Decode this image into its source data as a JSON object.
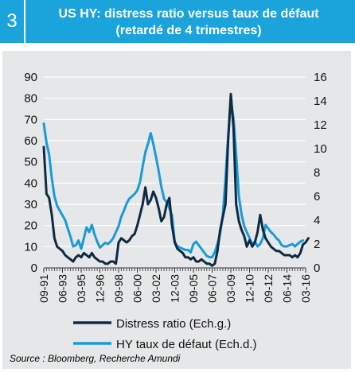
{
  "figure": {
    "number": "3",
    "title_line1": "US HY: distress ratio versus taux de défaut",
    "title_line2": "(retardé de 4 trimestres)",
    "source": "Source : Bloomberg, Recherche Amundi"
  },
  "colors": {
    "header": "#1ba3dc",
    "panel": "#e6e7e8",
    "distress": "#0d2b45",
    "default_rate": "#1a9ad9"
  },
  "chart_data": {
    "type": "line",
    "x_ticks": [
      "09-91",
      "06-93",
      "03-95",
      "12-96",
      "09-98",
      "06-00",
      "03-02",
      "12-03",
      "09-05",
      "06-07",
      "03-09",
      "12-10",
      "09-12",
      "06-14",
      "03-16"
    ],
    "y_left": {
      "label": "",
      "ylim": [
        0,
        90
      ],
      "ticks": [
        0,
        10,
        20,
        30,
        40,
        50,
        60,
        70,
        80,
        90
      ]
    },
    "y_right": {
      "label": "",
      "ylim": [
        0,
        16
      ],
      "ticks": [
        0,
        2,
        4,
        6,
        8,
        10,
        12,
        14,
        16
      ]
    },
    "legend_position": "bottom",
    "series": [
      {
        "name": "Distress ratio (Ech.g.)",
        "axis": "left",
        "color": "#0d2b45",
        "points": [
          [
            "1991-09",
            57
          ],
          [
            "1991-12",
            35
          ],
          [
            "1992-03",
            33
          ],
          [
            "1992-06",
            25
          ],
          [
            "1992-09",
            14
          ],
          [
            "1992-12",
            10
          ],
          [
            "1993-03",
            9
          ],
          [
            "1993-06",
            8
          ],
          [
            "1993-09",
            6
          ],
          [
            "1993-12",
            5
          ],
          [
            "1994-03",
            4
          ],
          [
            "1994-06",
            3
          ],
          [
            "1994-09",
            5
          ],
          [
            "1994-12",
            6
          ],
          [
            "1995-03",
            5
          ],
          [
            "1995-06",
            7
          ],
          [
            "1995-09",
            6
          ],
          [
            "1995-12",
            5
          ],
          [
            "1996-03",
            7
          ],
          [
            "1996-06",
            5
          ],
          [
            "1996-09",
            4
          ],
          [
            "1996-12",
            3
          ],
          [
            "1997-03",
            3
          ],
          [
            "1997-06",
            2
          ],
          [
            "1997-09",
            2
          ],
          [
            "1997-12",
            3
          ],
          [
            "1998-03",
            3
          ],
          [
            "1998-06",
            2
          ],
          [
            "1998-09",
            12
          ],
          [
            "1998-12",
            14
          ],
          [
            "1999-03",
            13
          ],
          [
            "1999-06",
            12
          ],
          [
            "1999-09",
            13
          ],
          [
            "1999-12",
            15
          ],
          [
            "2000-03",
            16
          ],
          [
            "2000-06",
            20
          ],
          [
            "2000-09",
            25
          ],
          [
            "2000-12",
            30
          ],
          [
            "2001-03",
            38
          ],
          [
            "2001-06",
            30
          ],
          [
            "2001-09",
            32
          ],
          [
            "2001-12",
            36
          ],
          [
            "2002-03",
            33
          ],
          [
            "2002-06",
            28
          ],
          [
            "2002-09",
            22
          ],
          [
            "2002-12",
            24
          ],
          [
            "2003-03",
            30
          ],
          [
            "2003-06",
            33
          ],
          [
            "2003-09",
            20
          ],
          [
            "2003-12",
            12
          ],
          [
            "2004-03",
            9
          ],
          [
            "2004-06",
            8
          ],
          [
            "2004-09",
            7
          ],
          [
            "2004-12",
            5
          ],
          [
            "2005-03",
            5
          ],
          [
            "2005-06",
            4
          ],
          [
            "2005-09",
            5
          ],
          [
            "2005-12",
            3
          ],
          [
            "2006-03",
            3
          ],
          [
            "2006-06",
            4
          ],
          [
            "2006-09",
            3
          ],
          [
            "2006-12",
            2
          ],
          [
            "2007-03",
            2
          ],
          [
            "2007-06",
            1
          ],
          [
            "2007-09",
            2
          ],
          [
            "2007-12",
            8
          ],
          [
            "2008-03",
            18
          ],
          [
            "2008-06",
            24
          ],
          [
            "2008-09",
            30
          ],
          [
            "2008-12",
            60
          ],
          [
            "2009-03",
            82
          ],
          [
            "2009-06",
            66
          ],
          [
            "2009-09",
            30
          ],
          [
            "2009-12",
            22
          ],
          [
            "2010-03",
            18
          ],
          [
            "2010-06",
            15
          ],
          [
            "2010-09",
            10
          ],
          [
            "2010-12",
            13
          ],
          [
            "2011-03",
            10
          ],
          [
            "2011-06",
            12
          ],
          [
            "2011-09",
            17
          ],
          [
            "2011-12",
            25
          ],
          [
            "2012-03",
            18
          ],
          [
            "2012-06",
            14
          ],
          [
            "2012-09",
            12
          ],
          [
            "2012-12",
            10
          ],
          [
            "2013-03",
            9
          ],
          [
            "2013-06",
            8
          ],
          [
            "2013-09",
            8
          ],
          [
            "2013-12",
            7
          ],
          [
            "2014-03",
            6
          ],
          [
            "2014-06",
            6
          ],
          [
            "2014-09",
            6
          ],
          [
            "2014-12",
            5
          ],
          [
            "2015-03",
            6
          ],
          [
            "2015-06",
            5
          ],
          [
            "2015-09",
            7
          ],
          [
            "2015-12",
            11
          ],
          [
            "2016-03",
            12
          ],
          [
            "2016-06",
            14
          ]
        ]
      },
      {
        "name": "HY taux de défaut (Ech.d.)",
        "axis": "right",
        "color": "#1a9ad9",
        "points": [
          [
            "1991-09",
            12.1
          ],
          [
            "1991-12",
            10.5
          ],
          [
            "1992-03",
            9.5
          ],
          [
            "1992-06",
            7.5
          ],
          [
            "1992-09",
            6
          ],
          [
            "1992-12",
            5.2
          ],
          [
            "1993-03",
            4.8
          ],
          [
            "1993-06",
            4.4
          ],
          [
            "1993-09",
            4
          ],
          [
            "1993-12",
            3.3
          ],
          [
            "1994-03",
            2.6
          ],
          [
            "1994-06",
            1.8
          ],
          [
            "1994-09",
            1.9
          ],
          [
            "1994-12",
            2.3
          ],
          [
            "1995-03",
            1.6
          ],
          [
            "1995-06",
            2.5
          ],
          [
            "1995-09",
            3.4
          ],
          [
            "1995-12",
            3.0
          ],
          [
            "1996-03",
            3.6
          ],
          [
            "1996-06",
            2.8
          ],
          [
            "1996-09",
            2.2
          ],
          [
            "1996-12",
            1.7
          ],
          [
            "1997-03",
            1.9
          ],
          [
            "1997-06",
            2.1
          ],
          [
            "1997-09",
            2.0
          ],
          [
            "1997-12",
            2.2
          ],
          [
            "1998-03",
            2.5
          ],
          [
            "1998-06",
            3.0
          ],
          [
            "1998-09",
            3.5
          ],
          [
            "1998-12",
            4.3
          ],
          [
            "1999-03",
            4.8
          ],
          [
            "1999-06",
            5.4
          ],
          [
            "1999-09",
            5.8
          ],
          [
            "1999-12",
            6.0
          ],
          [
            "2000-03",
            6.2
          ],
          [
            "2000-06",
            6.5
          ],
          [
            "2000-09",
            7.2
          ],
          [
            "2000-12",
            8.5
          ],
          [
            "2001-03",
            9.7
          ],
          [
            "2001-06",
            10.4
          ],
          [
            "2001-09",
            11.3
          ],
          [
            "2001-12",
            10.4
          ],
          [
            "2002-03",
            9.3
          ],
          [
            "2002-06",
            8.1
          ],
          [
            "2002-09",
            6.8
          ],
          [
            "2002-12",
            5.8
          ],
          [
            "2003-03",
            5.5
          ],
          [
            "2003-06",
            5.0
          ],
          [
            "2003-09",
            4.4
          ],
          [
            "2003-12",
            2.2
          ],
          [
            "2004-03",
            1.8
          ],
          [
            "2004-06",
            1.7
          ],
          [
            "2004-09",
            1.6
          ],
          [
            "2004-12",
            1.5
          ],
          [
            "2005-03",
            1.5
          ],
          [
            "2005-06",
            1.3
          ],
          [
            "2005-09",
            2.0
          ],
          [
            "2005-12",
            2.2
          ],
          [
            "2006-03",
            1.9
          ],
          [
            "2006-06",
            1.6
          ],
          [
            "2006-09",
            1.3
          ],
          [
            "2006-12",
            1.0
          ],
          [
            "2007-03",
            0.9
          ],
          [
            "2007-06",
            0.9
          ],
          [
            "2007-09",
            1.3
          ],
          [
            "2007-12",
            2.0
          ],
          [
            "2008-03",
            2.9
          ],
          [
            "2008-06",
            4.4
          ],
          [
            "2008-09",
            7.5
          ],
          [
            "2008-12",
            11.0
          ],
          [
            "2009-03",
            14.0
          ],
          [
            "2009-06",
            12.5
          ],
          [
            "2009-09",
            9.5
          ],
          [
            "2009-12",
            6.0
          ],
          [
            "2010-03",
            4.5
          ],
          [
            "2010-06",
            3.5
          ],
          [
            "2010-09",
            3.0
          ],
          [
            "2010-12",
            2.5
          ],
          [
            "2011-03",
            2.0
          ],
          [
            "2011-06",
            2.2
          ],
          [
            "2011-09",
            1.8
          ],
          [
            "2011-12",
            2.0
          ],
          [
            "2012-03",
            2.5
          ],
          [
            "2012-06",
            3.6
          ],
          [
            "2012-09",
            3.3
          ],
          [
            "2012-12",
            3.0
          ],
          [
            "2013-03",
            2.8
          ],
          [
            "2013-06",
            2.5
          ],
          [
            "2013-09",
            2.3
          ],
          [
            "2013-12",
            1.9
          ],
          [
            "2014-03",
            1.8
          ],
          [
            "2014-06",
            1.8
          ],
          [
            "2014-09",
            1.9
          ],
          [
            "2014-12",
            2.0
          ],
          [
            "2015-03",
            1.8
          ],
          [
            "2015-06",
            2.0
          ],
          [
            "2015-09",
            2.2
          ],
          [
            "2015-12",
            2.3
          ]
        ]
      }
    ]
  }
}
